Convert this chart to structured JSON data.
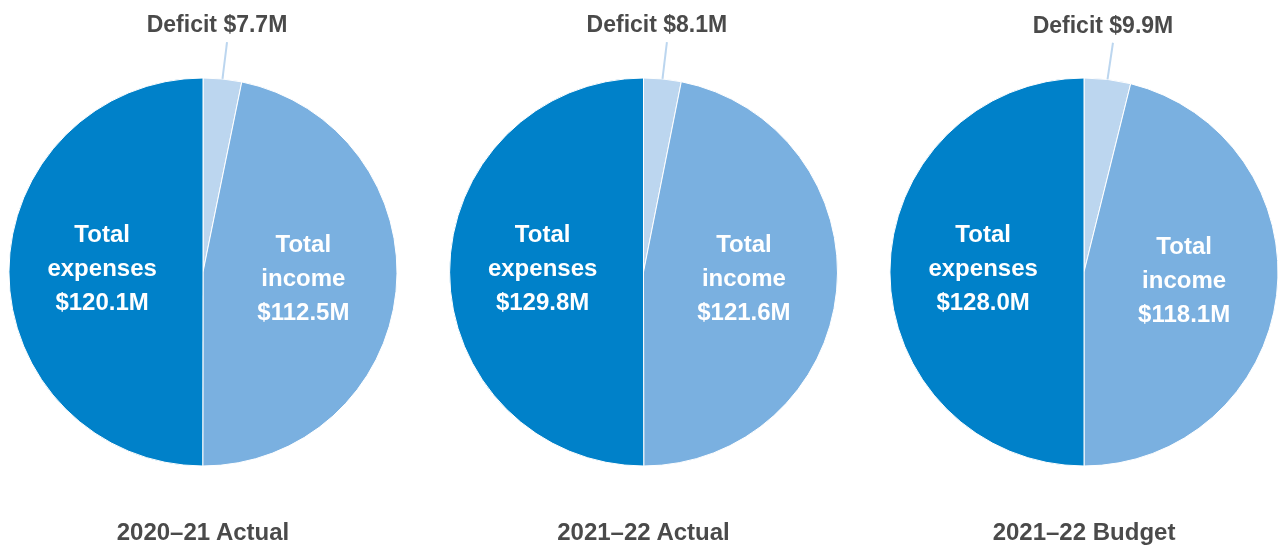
{
  "chart_data": [
    {
      "type": "pie",
      "title": "2020–21 Actual",
      "categories": [
        "Deficit",
        "Total income",
        "Total expenses"
      ],
      "values": [
        7.7,
        112.5,
        120.1
      ],
      "value_labels": [
        "$7.7M",
        "$112.5M",
        "$120.1M"
      ],
      "colors": [
        "#bcd6ef",
        "#7ab0e0",
        "#0081c9"
      ]
    },
    {
      "type": "pie",
      "title": "2021–22 Actual",
      "categories": [
        "Deficit",
        "Total income",
        "Total expenses"
      ],
      "values": [
        8.1,
        121.6,
        129.8
      ],
      "value_labels": [
        "$8.1M",
        "$121.6M",
        "$129.8M"
      ],
      "colors": [
        "#bcd6ef",
        "#7ab0e0",
        "#0081c9"
      ]
    },
    {
      "type": "pie",
      "title": "2021–22 Budget",
      "categories": [
        "Deficit",
        "Total income",
        "Total expenses"
      ],
      "values": [
        9.9,
        118.1,
        128.0
      ],
      "value_labels": [
        "$9.9M",
        "$118.1M",
        "$128.0M"
      ],
      "colors": [
        "#bcd6ef",
        "#7ab0e0",
        "#0081c9"
      ]
    }
  ]
}
